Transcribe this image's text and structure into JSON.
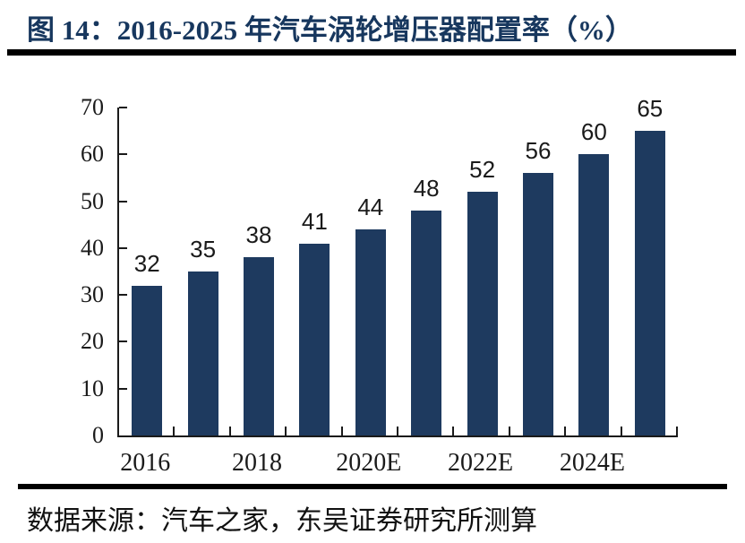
{
  "header": {
    "title": "图 14：2016-2025 年汽车涡轮增压器配置率（%）",
    "title_color": "#17375e"
  },
  "chart_data": {
    "type": "bar",
    "title": "2016-2025 年汽车涡轮增压器配置率（%）",
    "values": [
      32,
      35,
      38,
      41,
      44,
      48,
      52,
      56,
      60,
      65
    ],
    "data_labels": [
      "32",
      "35",
      "38",
      "41",
      "44",
      "48",
      "52",
      "56",
      "60",
      "65"
    ],
    "x_tick_labels": [
      "2016",
      "2018",
      "2020E",
      "2022E",
      "2024E"
    ],
    "x_tick_label_slots": [
      0,
      2,
      4,
      6,
      8
    ],
    "yticks": [
      0,
      10,
      20,
      30,
      40,
      50,
      60,
      70
    ],
    "ylim": [
      0,
      70
    ],
    "xlabel": "",
    "ylabel": "",
    "grid": false,
    "legend": false,
    "bar_color": "#1e3a5f",
    "axis_color": "#1a1a1a"
  },
  "footer": {
    "source": "数据来源：汽车之家，东吴证券研究所测算"
  }
}
